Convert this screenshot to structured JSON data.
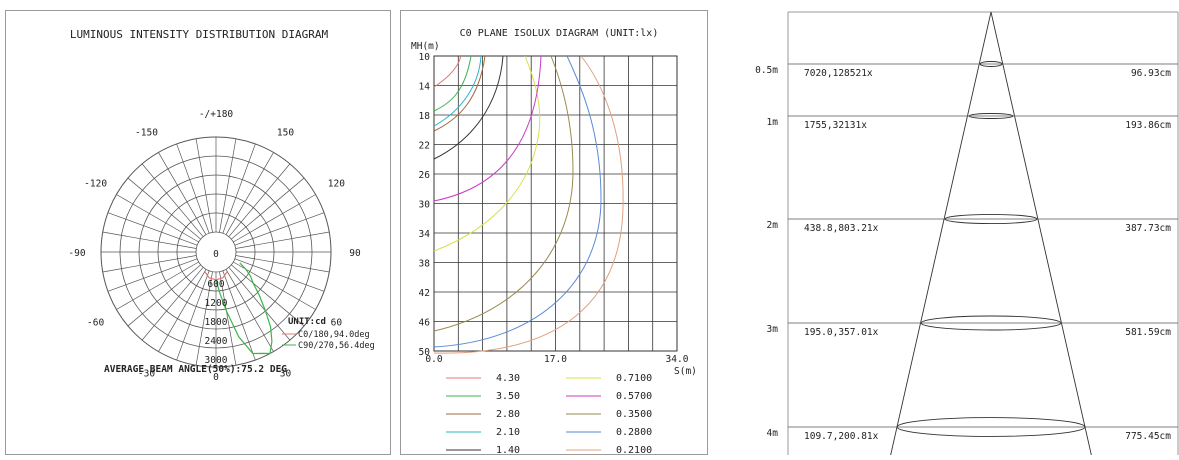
{
  "polar": {
    "title": "LUMINOUS INTENSITY DISTRIBUTION DIAGRAM",
    "angle_labels": [
      "-/+180",
      "150",
      "120",
      "90",
      "60",
      "30",
      "0",
      "-30",
      "-60",
      "-90",
      "-120",
      "-150"
    ],
    "radial_labels": [
      "0",
      "600",
      "1200",
      "1800",
      "2400",
      "3000"
    ],
    "unit_label": "UNIT:cd",
    "legend": [
      {
        "label": "C0/180,94.0deg",
        "color": "#e07a7a"
      },
      {
        "label": "C90/270,56.4deg",
        "color": "#3cb44b"
      }
    ],
    "beam_angle_text": "AVERAGE BEAM ANGLE(50%):75.2 DEG",
    "curves": {
      "c0": {
        "color": "#e07a7a",
        "points": [
          [
            -30,
            80
          ],
          [
            -15,
            210
          ],
          [
            0,
            250
          ],
          [
            15,
            210
          ],
          [
            30,
            80
          ]
        ]
      },
      "c90": {
        "color": "#3cb44b",
        "points": [
          [
            0,
            240
          ],
          [
            5,
            640
          ],
          [
            10,
            1250
          ],
          [
            15,
            2140
          ],
          [
            20,
            2780
          ],
          [
            25,
            2900
          ],
          [
            28,
            3000
          ],
          [
            32,
            2700
          ],
          [
            36,
            2300
          ],
          [
            40,
            1800
          ],
          [
            45,
            1300
          ],
          [
            50,
            900
          ],
          [
            55,
            700
          ],
          [
            60,
            450
          ],
          [
            65,
            200
          ]
        ]
      }
    }
  },
  "isolux": {
    "title": "C0 PLANE ISOLUX DIAGRAM (UNIT:lx)",
    "y_axis_label": "MH(m)",
    "x_axis_label": "S(m)",
    "y_ticks": [
      "10",
      "14",
      "18",
      "22",
      "26",
      "30",
      "34",
      "38",
      "42",
      "46",
      "50"
    ],
    "x_ticks": [
      "0.0",
      "17.0",
      "34.0"
    ],
    "legend": [
      {
        "value": "4.30",
        "color": "#e07a7a"
      },
      {
        "value": "3.50",
        "color": "#3cb44b"
      },
      {
        "value": "2.80",
        "color": "#a06a3c"
      },
      {
        "value": "2.10",
        "color": "#27b5c9"
      },
      {
        "value": "1.40",
        "color": "#333333"
      },
      {
        "value": "0.7100",
        "color": "#d8e04a"
      },
      {
        "value": "0.5700",
        "color": "#c93cc9"
      },
      {
        "value": "0.3500",
        "color": "#9a8a50"
      },
      {
        "value": "0.2800",
        "color": "#5a8ad8"
      },
      {
        "value": "0.2100",
        "color": "#e0a080"
      }
    ]
  },
  "cone": {
    "rows": [
      {
        "distance": "0.5m",
        "illuminance": "7020,128521x",
        "diameter": "96.93cm"
      },
      {
        "distance": "1m",
        "illuminance": "1755,32131x",
        "diameter": "193.86cm"
      },
      {
        "distance": "2m",
        "illuminance": "438.8,803.21x",
        "diameter": "387.73cm"
      },
      {
        "distance": "3m",
        "illuminance": "195.0,357.01x",
        "diameter": "581.59cm"
      },
      {
        "distance": "4m",
        "illuminance": "109.7,200.81x",
        "diameter": "775.45cm"
      }
    ]
  }
}
